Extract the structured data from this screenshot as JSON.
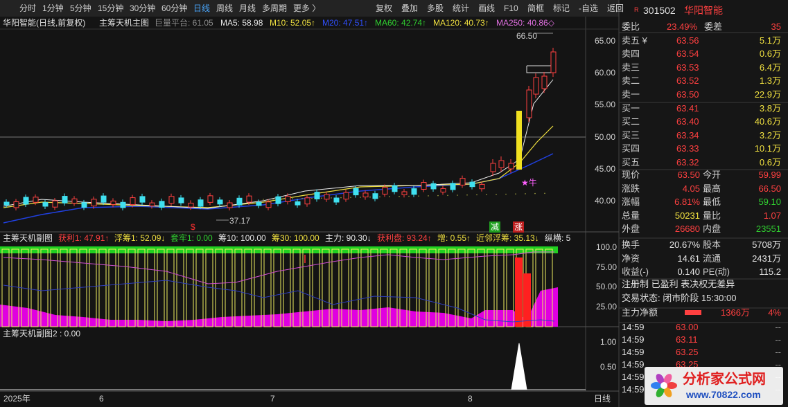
{
  "toolbar": {
    "periods": [
      "分时",
      "1分钟",
      "5分钟",
      "15分钟",
      "30分钟",
      "60分钟",
      "日线",
      "周线",
      "月线",
      "多周期",
      "更多 〉"
    ],
    "active_period": "日线",
    "actions": [
      "复权",
      "叠加",
      "多股",
      "统计",
      "画线",
      "F10",
      "简框",
      "标记",
      "-自选",
      "返回"
    ]
  },
  "main_chart": {
    "title": "华阳智能(日线,前复权)",
    "indicator": "主筹天机主图",
    "legend": [
      {
        "text": "巨量平台: 61.05",
        "color": "#8a8a8a"
      },
      {
        "text": "MA5: 58.98",
        "color": "#e6e6e6"
      },
      {
        "text": "M10: 52.05↑",
        "color": "#f0e040"
      },
      {
        "text": "M20: 47.51↑",
        "color": "#3050ff"
      },
      {
        "text": "MA60: 42.74↑",
        "color": "#30d030"
      },
      {
        "text": "MA120: 40.73↑",
        "color": "#f0e040"
      },
      {
        "text": "MA250: 40.86◇",
        "color": "#e070e0"
      }
    ],
    "price_ticks": [
      "65.00",
      "60.00",
      "55.00",
      "50.00",
      "45.00",
      "40.00"
    ],
    "high_label": "66.50",
    "low_label": "37.17",
    "signal_reduce": "减",
    "signal_rise": "涨",
    "signal_bull": "★牛",
    "signal_dollar": "$"
  },
  "sub_chart_1": {
    "indicator": "主筹天机副图",
    "legend": [
      {
        "text": "获利1: 47.91↑",
        "color": "#ff4040"
      },
      {
        "text": "浮筹1: 52.09↓",
        "color": "#f0e040"
      },
      {
        "text": "套牢1: 0.00",
        "color": "#30d030"
      },
      {
        "text": "筹10: 100.00",
        "color": "#e6e6e6"
      },
      {
        "text": "筹30: 100.00",
        "color": "#f0e040"
      },
      {
        "text": "主力: 90.30↓",
        "color": "#e6e6e6"
      },
      {
        "text": "获利盘: 93.24↑",
        "color": "#ff4040"
      },
      {
        "text": "增: 0.55↑",
        "color": "#f0e040"
      },
      {
        "text": "近邻浮筹: 35.13↓",
        "color": "#f0e040"
      },
      {
        "text": "纵横: 5",
        "color": "#e6e6e6"
      }
    ],
    "ticks": [
      "100.0",
      "75.00",
      "50.00",
      "25.00"
    ]
  },
  "sub_chart_2": {
    "indicator": "主筹天机副图2 : 0.00",
    "ticks": [
      "1.00",
      "0.50"
    ]
  },
  "x_axis": {
    "labels": [
      "2025年",
      "6",
      "7",
      "8"
    ],
    "period": "日线"
  },
  "quote": {
    "badge": "R",
    "code": "301502",
    "name": "华阳智能",
    "ratio_label": "委比",
    "ratio": "23.49%",
    "diff_label": "委差",
    "diff": "35",
    "order_book": [
      {
        "label": "卖五 ¥",
        "price": "63.56",
        "volume": "5.1万"
      },
      {
        "label": "卖四",
        "price": "63.54",
        "volume": "0.6万"
      },
      {
        "label": "卖三",
        "price": "63.53",
        "volume": "6.4万"
      },
      {
        "label": "卖二",
        "price": "63.52",
        "volume": "1.3万"
      },
      {
        "label": "卖一",
        "price": "63.50",
        "volume": "22.9万"
      },
      {
        "label": "买一",
        "price": "63.41",
        "volume": "3.8万"
      },
      {
        "label": "买二",
        "price": "63.40",
        "volume": "40.6万"
      },
      {
        "label": "买三",
        "price": "63.34",
        "volume": "3.2万"
      },
      {
        "label": "买四",
        "price": "63.33",
        "volume": "10.1万"
      },
      {
        "label": "买五",
        "price": "63.32",
        "volume": "0.6万"
      }
    ],
    "stats": [
      [
        {
          "text": "现价"
        },
        {
          "text": "63.50",
          "color": "#ff4040"
        },
        {
          "text": "今开"
        },
        {
          "text": "59.99",
          "color": "#ff4040"
        }
      ],
      [
        {
          "text": "涨跌"
        },
        {
          "text": "4.05",
          "color": "#ff4040"
        },
        {
          "text": "最高"
        },
        {
          "text": "66.50",
          "color": "#ff4040"
        }
      ],
      [
        {
          "text": "涨幅"
        },
        {
          "text": "6.81%",
          "color": "#ff4040"
        },
        {
          "text": "最低"
        },
        {
          "text": "59.10",
          "color": "#30d030"
        }
      ],
      [
        {
          "text": "总量"
        },
        {
          "text": "50231",
          "color": "#f0e040"
        },
        {
          "text": "量比"
        },
        {
          "text": "1.07",
          "color": "#ff4040"
        }
      ],
      [
        {
          "text": "外盘"
        },
        {
          "text": "26680",
          "color": "#ff4040"
        },
        {
          "text": "内盘"
        },
        {
          "text": "23551",
          "color": "#30d030"
        }
      ],
      [
        {
          "text": "换手"
        },
        {
          "text": "20.67%",
          "color": "#e6e6e6"
        },
        {
          "text": "股本"
        },
        {
          "text": "5708万",
          "color": "#e6e6e6"
        }
      ],
      [
        {
          "text": "净资"
        },
        {
          "text": "14.61",
          "color": "#e6e6e6"
        },
        {
          "text": "流通"
        },
        {
          "text": "2431万",
          "color": "#e6e6e6"
        }
      ],
      [
        {
          "text": "收益(-)"
        },
        {
          "text": "0.140",
          "color": "#e6e6e6"
        },
        {
          "text": "PE(动)"
        },
        {
          "text": "115.2",
          "color": "#e6e6e6"
        }
      ]
    ],
    "tags": "注册制 已盈利 表决权无差异",
    "status": "交易状态: 闭市阶段 15:30:00",
    "main_net_label": "主力净额",
    "main_net": "1366万",
    "main_net_pct": "4%",
    "trades": [
      [
        "14:59",
        "63.00",
        "--"
      ],
      [
        "14:59",
        "63.11",
        "--"
      ],
      [
        "14:59",
        "63.25",
        "--"
      ],
      [
        "14:59",
        "63.25",
        "--"
      ],
      [
        "14:59",
        "--"
      ],
      [
        "14:59",
        "--"
      ]
    ]
  },
  "watermark": {
    "title": "分析家公式网",
    "url": "www.70822.com"
  }
}
